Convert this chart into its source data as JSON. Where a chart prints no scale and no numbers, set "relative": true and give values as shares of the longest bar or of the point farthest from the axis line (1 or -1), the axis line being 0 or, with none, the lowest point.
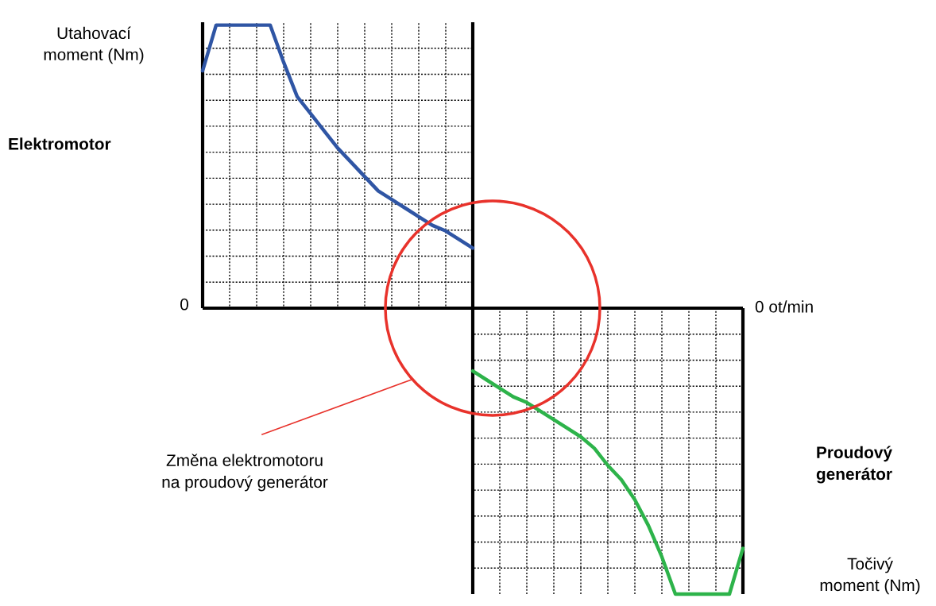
{
  "chart_data": {
    "type": "line",
    "relative": true,
    "grid": true,
    "ylabel": "Utahovací\nmoment (Nm)",
    "categories": [
      null,
      null,
      null,
      null,
      null,
      null,
      null,
      null,
      null,
      null,
      null,
      null,
      null,
      null,
      null,
      null,
      null,
      null,
      null,
      null,
      null,
      null,
      null,
      null,
      null,
      null,
      null,
      null,
      null,
      null,
      null,
      null,
      null,
      null,
      null,
      null,
      null,
      null,
      null,
      null,
      null
    ],
    "series": [
      {
        "color": "#2f55a4",
        "values": [
          0.83,
          0.99,
          0.99,
          0.99,
          0.99,
          0.99,
          0.86,
          0.74,
          0.68,
          0.62,
          0.56,
          0.51,
          0.46,
          0.41,
          0.38,
          0.35,
          0.32,
          0.29,
          0.27,
          0.24,
          0.21,
          null,
          null,
          null,
          null,
          null,
          null,
          null,
          null,
          null,
          null,
          null,
          null,
          null,
          null,
          null,
          null,
          null,
          null,
          null,
          null
        ]
      },
      {
        "color": "#2db34a",
        "values": [
          null,
          null,
          null,
          null,
          null,
          null,
          null,
          null,
          null,
          null,
          null,
          null,
          null,
          null,
          null,
          null,
          null,
          null,
          null,
          null,
          -0.22,
          -0.25,
          -0.28,
          -0.31,
          -0.33,
          -0.36,
          -0.39,
          -0.42,
          -0.45,
          -0.49,
          -0.55,
          -0.6,
          -0.67,
          -0.76,
          -0.87,
          -1,
          -1,
          -1,
          -1,
          -1,
          -0.84
        ]
      }
    ],
    "annotations": [
      "0",
      "0 ot/min",
      "Změna elektromotoru\nna proudový generátor",
      "Točivý\nmoment (Nm)",
      "Elektromotor",
      "Proudový\ngenerátor"
    ]
  }
}
